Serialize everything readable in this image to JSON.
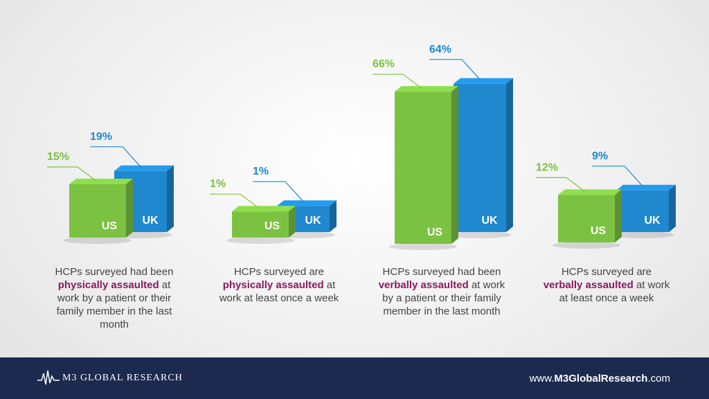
{
  "chart_data": [
    {
      "type": "bar",
      "categories": [
        "US",
        "UK"
      ],
      "values": [
        15,
        19
      ],
      "value_labels": [
        "15%",
        "19%"
      ],
      "colors": [
        "#7cc242",
        "#1f88cf"
      ],
      "caption": [
        "HCPs surveyed had been",
        "physically assaulted",
        "at work by a patient or their family member in the last month"
      ]
    },
    {
      "type": "bar",
      "categories": [
        "US",
        "UK"
      ],
      "values": [
        1,
        1
      ],
      "value_labels": [
        "1%",
        "1%"
      ],
      "colors": [
        "#7cc242",
        "#1f88cf"
      ],
      "caption": [
        "HCPs surveyed are",
        "physically assaulted",
        "at work at least once a week"
      ]
    },
    {
      "type": "bar",
      "categories": [
        "US",
        "UK"
      ],
      "values": [
        66,
        64
      ],
      "value_labels": [
        "66%",
        "64%"
      ],
      "colors": [
        "#7cc242",
        "#1f88cf"
      ],
      "caption": [
        "HCPs surveyed had been",
        "verbally assaulted",
        "at work by a patient or their family member in the last month"
      ]
    },
    {
      "type": "bar",
      "categories": [
        "US",
        "UK"
      ],
      "values": [
        12,
        9
      ],
      "value_labels": [
        "12%",
        "9%"
      ],
      "colors": [
        "#7cc242",
        "#1f88cf"
      ],
      "caption": [
        "HCPs surveyed are",
        "verbally assaulted",
        "at work at least once a week"
      ]
    }
  ],
  "footer": {
    "brand": "M3 GLOBAL RESEARCH",
    "url": [
      "www.",
      "M3GlobalResearch",
      ".com"
    ]
  }
}
